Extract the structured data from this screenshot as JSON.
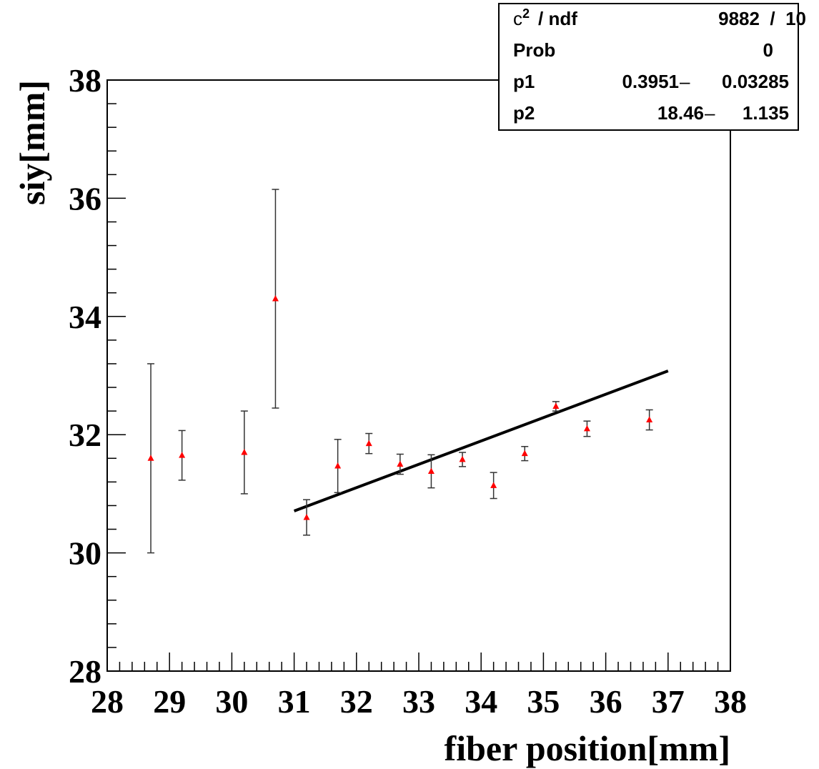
{
  "chart_data": {
    "type": "scatter",
    "xlabel": "fiber position[mm]",
    "ylabel": "siy[mm]",
    "xlim": [
      28,
      38
    ],
    "ylim": [
      28,
      38
    ],
    "x_ticks": [
      "28",
      "29",
      "30",
      "31",
      "32",
      "33",
      "34",
      "35",
      "36",
      "37",
      "38"
    ],
    "y_ticks": [
      "28",
      "30",
      "32",
      "34",
      "36",
      "38"
    ],
    "grid": false,
    "marker_color": "#ff0000",
    "points": [
      {
        "x": 28.7,
        "y": 31.6,
        "err": 1.6
      },
      {
        "x": 29.2,
        "y": 31.65,
        "err": 0.42
      },
      {
        "x": 30.2,
        "y": 31.7,
        "err": 0.7
      },
      {
        "x": 30.7,
        "y": 34.3,
        "err": 1.85
      },
      {
        "x": 31.2,
        "y": 30.6,
        "err": 0.3
      },
      {
        "x": 31.7,
        "y": 31.47,
        "err": 0.45
      },
      {
        "x": 32.2,
        "y": 31.85,
        "err": 0.17
      },
      {
        "x": 32.7,
        "y": 31.5,
        "err": 0.17
      },
      {
        "x": 33.2,
        "y": 31.38,
        "err": 0.28
      },
      {
        "x": 33.7,
        "y": 31.58,
        "err": 0.12
      },
      {
        "x": 34.2,
        "y": 31.14,
        "err": 0.22
      },
      {
        "x": 34.7,
        "y": 31.68,
        "err": 0.12
      },
      {
        "x": 35.2,
        "y": 32.48,
        "err": 0.08
      },
      {
        "x": 35.7,
        "y": 32.1,
        "err": 0.13
      },
      {
        "x": 36.7,
        "y": 32.25,
        "err": 0.17
      }
    ],
    "fit": {
      "type": "line",
      "x_range": [
        31.0,
        37.0
      ],
      "p1": 0.3951,
      "p2": 18.46
    }
  },
  "stats_box": {
    "rows": [
      {
        "label": "c",
        "sup": "2",
        "label_rest": "/  ndf",
        "value": "9882  /  10"
      },
      {
        "label": "Prob",
        "value": "0"
      },
      {
        "label": "p1",
        "value": "0.3951",
        "pm": "–",
        "error": "0.03285"
      },
      {
        "label": "p2",
        "value": "18.46",
        "pm": "–",
        "error": "1.135"
      }
    ]
  }
}
